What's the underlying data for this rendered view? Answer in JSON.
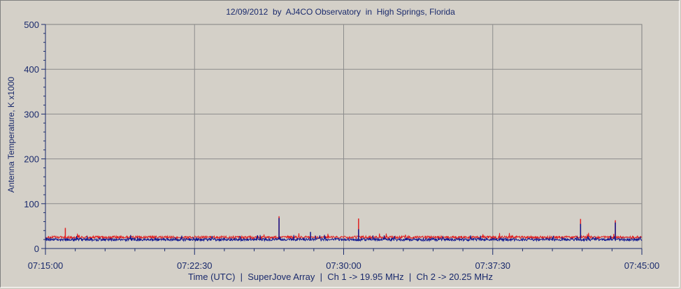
{
  "chart_data": {
    "type": "line",
    "title": "12/09/2012  by  AJ4CO Observatory  in  High Springs, Florida",
    "xlabel": "Time (UTC)  |  SuperJove Array  |  Ch 1 -> 19.95 MHz  |  Ch 2 -> 20.25 MHz",
    "ylabel": "Antenna Temperature, K x1000",
    "ylim": [
      0,
      500
    ],
    "yticks": [
      "0",
      "100",
      "200",
      "300",
      "400",
      "500"
    ],
    "xlim": [
      "07:15:00",
      "07:45:00"
    ],
    "xticks": [
      "07:15:00",
      "07:22:30",
      "07:30:00",
      "07:37:30",
      "07:45:00"
    ],
    "grid": true,
    "series": [
      {
        "color": "#e02020",
        "baseline": 25,
        "noise": 3,
        "spikes": [
          [
            "07:16:00",
            46
          ],
          [
            "07:26:45",
            72
          ],
          [
            "07:30:45",
            67
          ],
          [
            "07:41:55",
            66
          ],
          [
            "07:43:40",
            63
          ]
        ]
      },
      {
        "color": "#101890",
        "baseline": 20,
        "noise": 3,
        "spikes": [
          [
            "07:26:45",
            68
          ],
          [
            "07:28:20",
            37
          ],
          [
            "07:30:45",
            43
          ],
          [
            "07:41:55",
            55
          ],
          [
            "07:43:40",
            58
          ]
        ]
      }
    ]
  }
}
